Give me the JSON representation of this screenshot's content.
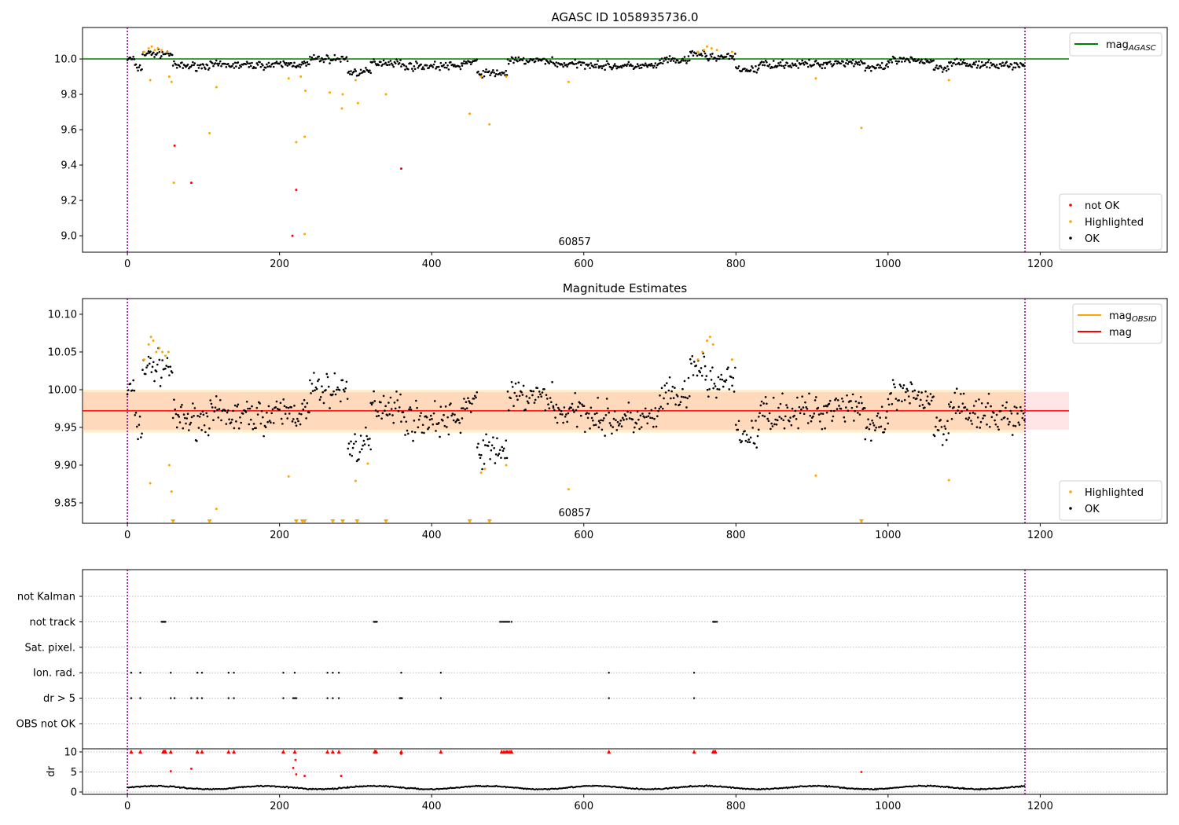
{
  "chart_data": {
    "type": "scatter",
    "xlim": [
      -59,
      1367
    ],
    "xticks": [
      0,
      200,
      400,
      600,
      800,
      1000,
      1200
    ],
    "obs_boundaries": [
      0,
      1180
    ],
    "obsid_label": "60857",
    "colors": {
      "ok": "#000000",
      "highlighted": "#ffa500",
      "not_ok": "#ff0000",
      "agasc": "#008000",
      "mag": "#ff0000",
      "boundary": "#800080"
    },
    "ok_levels": {
      "description_note": "mean OK magnitude per time segment [x_start, x_end, mean]",
      "segments": [
        [
          0,
          10,
          10.0
        ],
        [
          10,
          20,
          9.95
        ],
        [
          20,
          60,
          10.03
        ],
        [
          60,
          100,
          9.96
        ],
        [
          100,
          200,
          9.965
        ],
        [
          200,
          240,
          9.97
        ],
        [
          240,
          290,
          10.0
        ],
        [
          290,
          320,
          9.925
        ],
        [
          320,
          360,
          9.98
        ],
        [
          360,
          440,
          9.96
        ],
        [
          440,
          460,
          9.98
        ],
        [
          460,
          500,
          9.92
        ],
        [
          500,
          560,
          9.99
        ],
        [
          560,
          620,
          9.97
        ],
        [
          620,
          700,
          9.96
        ],
        [
          700,
          740,
          9.99
        ],
        [
          740,
          760,
          10.03
        ],
        [
          760,
          800,
          10.01
        ],
        [
          800,
          830,
          9.94
        ],
        [
          830,
          920,
          9.97
        ],
        [
          920,
          970,
          9.98
        ],
        [
          970,
          1000,
          9.95
        ],
        [
          1000,
          1060,
          9.99
        ],
        [
          1060,
          1080,
          9.95
        ],
        [
          1080,
          1100,
          9.985
        ],
        [
          1100,
          1180,
          9.965
        ]
      ],
      "scatter": 0.018
    },
    "panels": [
      {
        "title": "AGASC ID 1058935736.0",
        "ylim": [
          8.907,
          10.178
        ],
        "yticks": [
          9.0,
          9.2,
          9.4,
          9.6,
          9.8,
          10.0
        ],
        "mag_agasc": 10.0,
        "legend_lines": [
          {
            "label": "mag",
            "sub": "AGASC"
          }
        ],
        "legend_points": [
          "not OK",
          "Highlighted",
          "OK"
        ],
        "not_ok": [
          [
            62,
            9.51
          ],
          [
            84,
            9.3
          ],
          [
            222,
            9.26
          ],
          [
            217,
            9.0
          ],
          [
            360,
            9.38
          ]
        ],
        "highlighted": [
          [
            30,
            9.88
          ],
          [
            55,
            9.9
          ],
          [
            58,
            9.87
          ],
          [
            61,
            9.3
          ],
          [
            108,
            9.58
          ],
          [
            117,
            9.84
          ],
          [
            212,
            9.89
          ],
          [
            222,
            9.53
          ],
          [
            228,
            9.9
          ],
          [
            233,
            9.56
          ],
          [
            234,
            9.82
          ],
          [
            233,
            9.01
          ],
          [
            266,
            9.81
          ],
          [
            282,
            9.72
          ],
          [
            283,
            9.8
          ],
          [
            300,
            9.88
          ],
          [
            303,
            9.75
          ],
          [
            340,
            9.8
          ],
          [
            450,
            9.69
          ],
          [
            476,
            9.63
          ],
          [
            465,
            9.9
          ],
          [
            498,
            9.9
          ],
          [
            580,
            9.87
          ],
          [
            905,
            9.89
          ],
          [
            965,
            9.61
          ],
          [
            1080,
            9.88
          ],
          [
            22,
            10.04
          ],
          [
            28,
            10.06
          ],
          [
            32,
            10.07
          ],
          [
            36,
            10.05
          ],
          [
            40,
            10.06
          ],
          [
            45,
            10.05
          ],
          [
            52,
            10.04
          ],
          [
            750,
            10.04
          ],
          [
            758,
            10.05
          ],
          [
            762,
            10.07
          ],
          [
            768,
            10.06
          ],
          [
            775,
            10.05
          ],
          [
            795,
            10.04
          ]
        ]
      },
      {
        "title": "Magnitude Estimates",
        "ylim": [
          9.8229,
          10.1208
        ],
        "yticks": [
          9.85,
          9.9,
          9.95,
          10.0,
          10.05,
          10.1
        ],
        "mag": 9.972,
        "mag_band": [
          9.947,
          9.997
        ],
        "mag_obsid_band": [
          9.943,
          10.0
        ],
        "legend_lines": [
          {
            "label": "mag",
            "sub": "OBSID"
          },
          {
            "label": "mag",
            "sub": ""
          }
        ],
        "legend_points": [
          "Highlighted",
          "OK"
        ],
        "highlighted": [
          [
            22,
            10.04
          ],
          [
            28,
            10.06
          ],
          [
            31,
            10.07
          ],
          [
            34,
            10.065
          ],
          [
            38,
            10.05
          ],
          [
            42,
            10.055
          ],
          [
            46,
            10.05
          ],
          [
            50,
            10.045
          ],
          [
            54,
            10.05
          ],
          [
            30,
            9.876
          ],
          [
            55,
            9.9
          ],
          [
            58,
            9.865
          ],
          [
            117,
            9.842
          ],
          [
            212,
            9.885
          ],
          [
            300,
            9.879
          ],
          [
            316,
            9.902
          ],
          [
            465,
            9.89
          ],
          [
            470,
            9.895
          ],
          [
            498,
            9.9
          ],
          [
            580,
            9.868
          ],
          [
            750,
            10.04
          ],
          [
            756,
            10.05
          ],
          [
            762,
            10.065
          ],
          [
            766,
            10.07
          ],
          [
            770,
            10.06
          ],
          [
            795,
            10.04
          ],
          [
            905,
            9.886
          ],
          [
            1080,
            9.88
          ]
        ],
        "below_range": [
          60,
          108,
          222,
          230,
          233,
          270,
          283,
          302,
          340,
          450,
          476,
          965
        ]
      },
      {
        "flags": [
          "not Kalman",
          "not track",
          "Sat. pixel.",
          "Ion. rad.",
          "dr > 5",
          "OBS not OK"
        ],
        "flag_points": {
          "not Kalman": [],
          "not track": [
            45,
            46,
            47,
            48,
            49,
            50,
            324,
            325,
            326,
            327,
            328,
            490,
            492,
            494,
            496,
            498,
            500,
            502,
            505,
            770,
            771,
            772,
            773,
            775
          ],
          "Sat. pixel.": [],
          "Ion. rad.": [
            5,
            17,
            57,
            92,
            98,
            133,
            140,
            205,
            220,
            263,
            270,
            278,
            360,
            412,
            633,
            745
          ],
          "dr > 5": [
            5,
            17,
            57,
            62,
            84,
            92,
            98,
            133,
            140,
            205,
            218,
            220,
            222,
            263,
            270,
            278,
            358,
            359,
            360,
            361,
            412,
            633,
            745
          ],
          "OBS not OK": []
        }
      },
      {
        "ylabel": "dr",
        "ylim": [
          -0.59,
          10.78
        ],
        "yticks": [
          0,
          5,
          10
        ],
        "clipped_at_10": [
          5,
          17,
          47,
          48,
          49,
          50,
          57,
          92,
          98,
          133,
          140,
          205,
          220,
          263,
          270,
          278,
          325,
          326,
          327,
          360,
          412,
          492,
          495,
          498,
          500,
          503,
          505,
          633,
          745,
          770,
          772,
          773
        ],
        "red_points": [
          [
            57,
            5.2
          ],
          [
            84,
            5.8
          ],
          [
            218,
            6.0
          ],
          [
            221,
            8.0
          ],
          [
            222,
            4.4
          ],
          [
            233,
            4.0
          ],
          [
            281,
            4.0
          ],
          [
            360,
            9.5
          ],
          [
            965,
            5.0
          ]
        ],
        "ok_dr_level": 1.1
      }
    ]
  }
}
